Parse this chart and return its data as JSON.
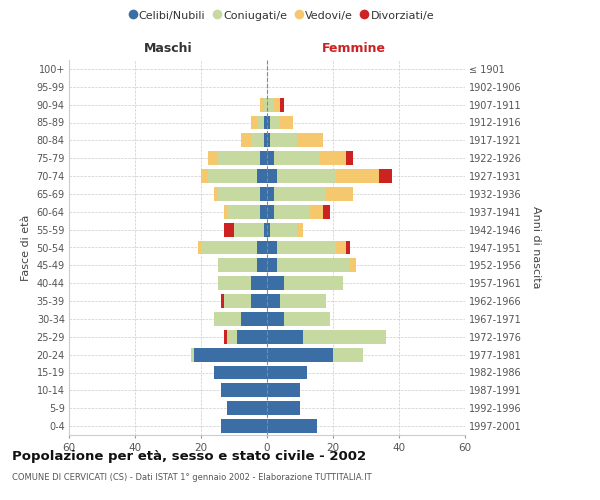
{
  "age_groups": [
    "0-4",
    "5-9",
    "10-14",
    "15-19",
    "20-24",
    "25-29",
    "30-34",
    "35-39",
    "40-44",
    "45-49",
    "50-54",
    "55-59",
    "60-64",
    "65-69",
    "70-74",
    "75-79",
    "80-84",
    "85-89",
    "90-94",
    "95-99",
    "100+"
  ],
  "birth_years": [
    "1997-2001",
    "1992-1996",
    "1987-1991",
    "1982-1986",
    "1977-1981",
    "1972-1976",
    "1967-1971",
    "1962-1966",
    "1957-1961",
    "1952-1956",
    "1947-1951",
    "1942-1946",
    "1937-1941",
    "1932-1936",
    "1927-1931",
    "1922-1926",
    "1917-1921",
    "1912-1916",
    "1907-1911",
    "1902-1906",
    "≤ 1901"
  ],
  "colors": {
    "celibe": "#3a6ea5",
    "coniugato": "#c5d9a0",
    "vedovo": "#f5c86e",
    "divorziato": "#cc2222"
  },
  "maschi": {
    "celibe": [
      14,
      12,
      14,
      16,
      22,
      9,
      8,
      5,
      5,
      3,
      3,
      1,
      2,
      2,
      3,
      2,
      1,
      1,
      0,
      0,
      0
    ],
    "coniugato": [
      0,
      0,
      0,
      0,
      1,
      3,
      8,
      8,
      10,
      12,
      17,
      9,
      10,
      13,
      15,
      13,
      4,
      2,
      1,
      0,
      0
    ],
    "vedovo": [
      0,
      0,
      0,
      0,
      0,
      0,
      0,
      0,
      0,
      0,
      1,
      0,
      1,
      1,
      2,
      3,
      3,
      2,
      1,
      0,
      0
    ],
    "divorziato": [
      0,
      0,
      0,
      0,
      0,
      1,
      0,
      1,
      0,
      0,
      0,
      3,
      0,
      0,
      0,
      0,
      0,
      0,
      0,
      0,
      0
    ]
  },
  "femmine": {
    "celibe": [
      15,
      10,
      10,
      12,
      20,
      11,
      5,
      4,
      5,
      3,
      3,
      1,
      2,
      2,
      3,
      2,
      1,
      1,
      0,
      0,
      0
    ],
    "coniugato": [
      0,
      0,
      0,
      0,
      9,
      25,
      14,
      14,
      18,
      22,
      18,
      8,
      11,
      16,
      18,
      14,
      8,
      3,
      2,
      0,
      0
    ],
    "vedovo": [
      0,
      0,
      0,
      0,
      0,
      0,
      0,
      0,
      0,
      2,
      3,
      2,
      4,
      8,
      13,
      8,
      8,
      4,
      2,
      0,
      0
    ],
    "divorziato": [
      0,
      0,
      0,
      0,
      0,
      0,
      0,
      0,
      0,
      0,
      1,
      0,
      2,
      0,
      4,
      2,
      0,
      0,
      1,
      0,
      0
    ]
  },
  "title": "Popolazione per età, sesso e stato civile - 2002",
  "subtitle": "COMUNE DI CERVICATI (CS) - Dati ISTAT 1° gennaio 2002 - Elaborazione TUTTITALIA.IT",
  "xlabel_left": "Maschi",
  "xlabel_right": "Femmine",
  "ylabel_left": "Fasce di età",
  "ylabel_right": "Anni di nascita",
  "xlim": 60,
  "legend_labels": [
    "Celibi/Nubili",
    "Coniugati/e",
    "Vedovi/e",
    "Divorziati/e"
  ],
  "bg_color": "#ffffff",
  "grid_color": "#cccccc",
  "maschi_label_color": "#333333",
  "femmine_label_color": "#cc2222"
}
